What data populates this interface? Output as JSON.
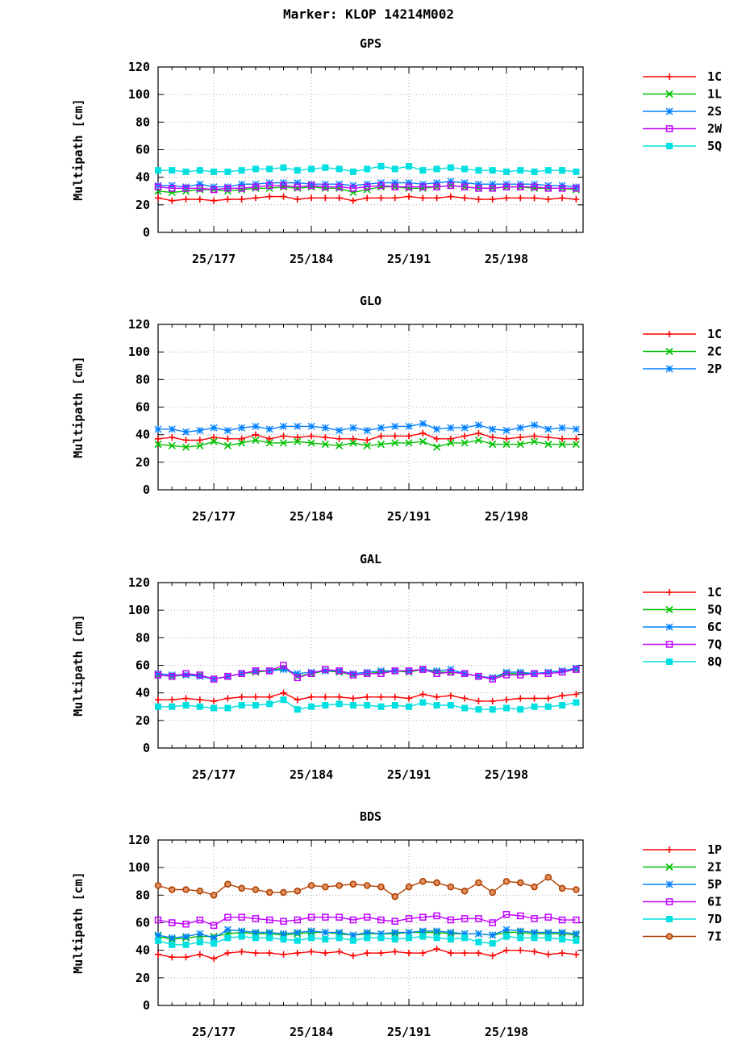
{
  "title": "Marker: KLOP 14214M002",
  "chart_data": [
    {
      "type": "line",
      "title": "GPS",
      "ylabel": "Multipath [cm]",
      "xlabel": "",
      "ylim": [
        0,
        120
      ],
      "yticks": [
        0,
        20,
        40,
        60,
        80,
        100,
        120
      ],
      "xlim": [
        173,
        203.5
      ],
      "xticks": [
        {
          "value": 177,
          "label": "25/177"
        },
        {
          "value": 184,
          "label": "25/184"
        },
        {
          "value": 191,
          "label": "25/191"
        },
        {
          "value": 198,
          "label": "25/198"
        }
      ],
      "grid": true,
      "legend": "right",
      "x": [
        173,
        174,
        175,
        176,
        177,
        178,
        179,
        180,
        181,
        182,
        183,
        184,
        185,
        186,
        187,
        188,
        189,
        190,
        191,
        192,
        193,
        194,
        195,
        196,
        197,
        198,
        199,
        200,
        201,
        202,
        203
      ],
      "series": [
        {
          "name": "1C",
          "color": "#ff0000",
          "marker": "plus",
          "values": [
            25,
            23,
            24,
            24,
            23,
            24,
            24,
            25,
            26,
            26,
            24,
            25,
            25,
            25,
            23,
            25,
            25,
            25,
            26,
            25,
            25,
            26,
            25,
            24,
            24,
            25,
            25,
            25,
            24,
            25,
            24
          ]
        },
        {
          "name": "1L",
          "color": "#00c000",
          "marker": "x",
          "values": [
            30,
            29,
            30,
            31,
            31,
            30,
            31,
            32,
            32,
            33,
            32,
            33,
            32,
            32,
            29,
            31,
            33,
            33,
            32,
            32,
            33,
            34,
            33,
            32,
            32,
            33,
            33,
            32,
            32,
            32,
            31
          ]
        },
        {
          "name": "2S",
          "color": "#0080ff",
          "marker": "star",
          "values": [
            34,
            34,
            33,
            35,
            33,
            33,
            35,
            35,
            36,
            36,
            36,
            35,
            35,
            35,
            34,
            35,
            36,
            36,
            36,
            35,
            36,
            37,
            36,
            35,
            35,
            35,
            35,
            35,
            34,
            34,
            33
          ]
        },
        {
          "name": "2W",
          "color": "#c000ff",
          "marker": "square",
          "values": [
            33,
            32,
            32,
            32,
            31,
            32,
            32,
            33,
            34,
            34,
            33,
            34,
            33,
            33,
            32,
            33,
            34,
            33,
            33,
            33,
            33,
            34,
            33,
            32,
            32,
            33,
            33,
            33,
            32,
            32,
            32
          ]
        },
        {
          "name": "5Q",
          "color": "#00e0e0",
          "marker": "filled-square",
          "values": [
            45,
            45,
            44,
            45,
            44,
            44,
            45,
            46,
            46,
            47,
            45,
            46,
            47,
            46,
            44,
            46,
            48,
            46,
            48,
            45,
            46,
            47,
            46,
            45,
            45,
            44,
            45,
            44,
            45,
            45,
            44
          ]
        }
      ]
    },
    {
      "type": "line",
      "title": "GLO",
      "ylabel": "Multipath [cm]",
      "xlabel": "",
      "ylim": [
        0,
        120
      ],
      "yticks": [
        0,
        20,
        40,
        60,
        80,
        100,
        120
      ],
      "xlim": [
        173,
        203.5
      ],
      "xticks": [
        {
          "value": 177,
          "label": "25/177"
        },
        {
          "value": 184,
          "label": "25/184"
        },
        {
          "value": 191,
          "label": "25/191"
        },
        {
          "value": 198,
          "label": "25/198"
        }
      ],
      "grid": true,
      "legend": "right",
      "x": [
        173,
        174,
        175,
        176,
        177,
        178,
        179,
        180,
        181,
        182,
        183,
        184,
        185,
        186,
        187,
        188,
        189,
        190,
        191,
        192,
        193,
        194,
        195,
        196,
        197,
        198,
        199,
        200,
        201,
        202,
        203
      ],
      "series": [
        {
          "name": "1C",
          "color": "#ff0000",
          "marker": "plus",
          "values": [
            37,
            38,
            36,
            36,
            38,
            37,
            37,
            40,
            37,
            39,
            38,
            39,
            38,
            37,
            37,
            36,
            39,
            39,
            39,
            41,
            37,
            37,
            39,
            41,
            38,
            37,
            38,
            39,
            38,
            37,
            37
          ]
        },
        {
          "name": "2C",
          "color": "#00c000",
          "marker": "x",
          "values": [
            33,
            32,
            31,
            32,
            35,
            32,
            34,
            36,
            34,
            34,
            35,
            34,
            33,
            32,
            34,
            32,
            33,
            34,
            34,
            35,
            31,
            34,
            34,
            36,
            33,
            33,
            33,
            35,
            33,
            33,
            33
          ]
        },
        {
          "name": "2P",
          "color": "#0080ff",
          "marker": "star",
          "values": [
            44,
            44,
            42,
            43,
            45,
            43,
            45,
            46,
            44,
            46,
            46,
            46,
            45,
            43,
            45,
            43,
            45,
            46,
            46,
            48,
            44,
            45,
            45,
            47,
            44,
            43,
            45,
            47,
            44,
            45,
            44
          ]
        }
      ]
    },
    {
      "type": "line",
      "title": "GAL",
      "ylabel": "Multipath [cm]",
      "xlabel": "",
      "ylim": [
        0,
        120
      ],
      "yticks": [
        0,
        20,
        40,
        60,
        80,
        100,
        120
      ],
      "xlim": [
        173,
        203.5
      ],
      "xticks": [
        {
          "value": 177,
          "label": "25/177"
        },
        {
          "value": 184,
          "label": "25/184"
        },
        {
          "value": 191,
          "label": "25/191"
        },
        {
          "value": 198,
          "label": "25/198"
        }
      ],
      "grid": true,
      "legend": "right",
      "x": [
        173,
        174,
        175,
        176,
        177,
        178,
        179,
        180,
        181,
        182,
        183,
        184,
        185,
        186,
        187,
        188,
        189,
        190,
        191,
        192,
        193,
        194,
        195,
        196,
        197,
        198,
        199,
        200,
        201,
        202,
        203
      ],
      "series": [
        {
          "name": "1C",
          "color": "#ff0000",
          "marker": "plus",
          "values": [
            35,
            35,
            36,
            35,
            34,
            36,
            37,
            37,
            37,
            40,
            35,
            37,
            37,
            37,
            36,
            37,
            37,
            37,
            36,
            39,
            37,
            38,
            36,
            34,
            34,
            35,
            36,
            36,
            36,
            38,
            39
          ]
        },
        {
          "name": "5Q",
          "color": "#00c000",
          "marker": "x",
          "values": [
            53,
            52,
            53,
            53,
            50,
            52,
            54,
            55,
            56,
            58,
            52,
            54,
            56,
            55,
            53,
            54,
            55,
            56,
            55,
            57,
            55,
            55,
            54,
            52,
            51,
            54,
            54,
            54,
            55,
            56,
            57
          ]
        },
        {
          "name": "6C",
          "color": "#0080ff",
          "marker": "star",
          "values": [
            54,
            53,
            53,
            52,
            50,
            52,
            54,
            56,
            56,
            57,
            54,
            55,
            56,
            56,
            54,
            55,
            56,
            56,
            56,
            57,
            56,
            57,
            54,
            52,
            51,
            55,
            55,
            54,
            55,
            56,
            58
          ]
        },
        {
          "name": "7Q",
          "color": "#c000ff",
          "marker": "square",
          "values": [
            53,
            52,
            54,
            53,
            50,
            52,
            54,
            56,
            56,
            60,
            51,
            54,
            57,
            56,
            53,
            54,
            54,
            56,
            56,
            57,
            54,
            55,
            54,
            52,
            50,
            53,
            53,
            54,
            54,
            55,
            57
          ]
        },
        {
          "name": "8Q",
          "color": "#00e0e0",
          "marker": "filled-square",
          "values": [
            30,
            30,
            31,
            30,
            29,
            29,
            31,
            31,
            32,
            35,
            28,
            30,
            31,
            32,
            31,
            31,
            30,
            31,
            30,
            33,
            31,
            31,
            29,
            28,
            28,
            29,
            28,
            30,
            30,
            31,
            33
          ]
        }
      ]
    },
    {
      "type": "line",
      "title": "BDS",
      "ylabel": "Multipath [cm]",
      "xlabel": "",
      "ylim": [
        0,
        120
      ],
      "yticks": [
        0,
        20,
        40,
        60,
        80,
        100,
        120
      ],
      "xlim": [
        173,
        203.5
      ],
      "xticks": [
        {
          "value": 177,
          "label": "25/177"
        },
        {
          "value": 184,
          "label": "25/184"
        },
        {
          "value": 191,
          "label": "25/191"
        },
        {
          "value": 198,
          "label": "25/198"
        }
      ],
      "grid": true,
      "legend": "right",
      "x": [
        173,
        174,
        175,
        176,
        177,
        178,
        179,
        180,
        181,
        182,
        183,
        184,
        185,
        186,
        187,
        188,
        189,
        190,
        191,
        192,
        193,
        194,
        195,
        196,
        197,
        198,
        199,
        200,
        201,
        202,
        203
      ],
      "series": [
        {
          "name": "1P",
          "color": "#ff0000",
          "marker": "plus",
          "values": [
            37,
            35,
            35,
            37,
            34,
            38,
            39,
            38,
            38,
            37,
            38,
            39,
            38,
            39,
            36,
            38,
            38,
            39,
            38,
            38,
            41,
            38,
            38,
            38,
            36,
            40,
            40,
            39,
            37,
            38,
            37
          ]
        },
        {
          "name": "2I",
          "color": "#00c000",
          "marker": "x",
          "values": [
            50,
            48,
            49,
            50,
            50,
            52,
            53,
            52,
            52,
            51,
            52,
            53,
            53,
            52,
            51,
            52,
            52,
            52,
            53,
            53,
            53,
            52,
            52,
            52,
            51,
            53,
            53,
            52,
            52,
            52,
            51
          ]
        },
        {
          "name": "5P",
          "color": "#0080ff",
          "marker": "star",
          "values": [
            51,
            49,
            50,
            52,
            49,
            55,
            54,
            53,
            53,
            52,
            53,
            54,
            53,
            53,
            51,
            53,
            52,
            53,
            53,
            54,
            54,
            53,
            52,
            52,
            51,
            55,
            54,
            53,
            53,
            53,
            52
          ]
        },
        {
          "name": "6I",
          "color": "#c000ff",
          "marker": "square",
          "values": [
            62,
            60,
            59,
            62,
            58,
            64,
            64,
            63,
            62,
            61,
            62,
            64,
            64,
            64,
            62,
            64,
            62,
            61,
            63,
            64,
            65,
            62,
            63,
            63,
            60,
            66,
            65,
            63,
            64,
            62,
            62
          ]
        },
        {
          "name": "7D",
          "color": "#00e0e0",
          "marker": "filled-square",
          "values": [
            47,
            44,
            44,
            46,
            45,
            49,
            50,
            49,
            49,
            48,
            47,
            49,
            48,
            49,
            47,
            49,
            49,
            48,
            49,
            50,
            49,
            48,
            49,
            46,
            45,
            50,
            49,
            49,
            49,
            48,
            47
          ]
        },
        {
          "name": "7I",
          "color": "#b04000",
          "marker": "circle",
          "values": [
            87,
            84,
            84,
            83,
            80,
            88,
            85,
            84,
            82,
            82,
            83,
            87,
            86,
            87,
            88,
            87,
            86,
            79,
            86,
            90,
            89,
            86,
            83,
            89,
            82,
            90,
            89,
            86,
            93,
            85,
            84
          ]
        }
      ]
    }
  ]
}
